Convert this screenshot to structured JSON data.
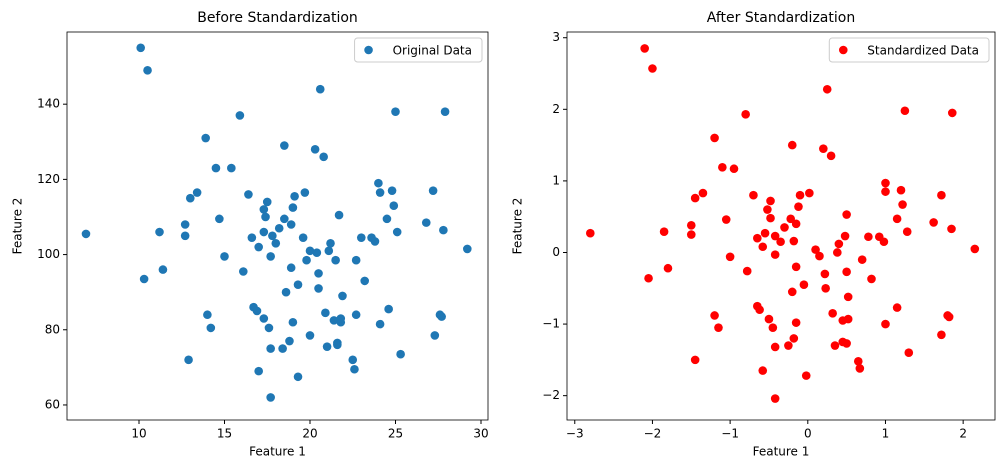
{
  "chart_data": [
    {
      "type": "scatter",
      "title": "Before Standardization",
      "x_label": "Feature 1",
      "y_label": "Feature 2",
      "legend": "upper right",
      "xlim": [
        5.79,
        30.41
      ],
      "ylim": [
        56.0,
        159.2
      ],
      "xticks": [
        10,
        15,
        20,
        25,
        30
      ],
      "yticks": [
        60,
        80,
        100,
        120,
        140
      ],
      "series": [
        {
          "name": "Original Data",
          "color": "#1f77b4",
          "x": [
            10.1,
            10.5,
            6.9,
            10.3,
            11.2,
            11.4,
            12.7,
            12.7,
            12.9,
            13,
            13.4,
            13.9,
            14.0,
            14.2,
            14.5,
            14.7,
            15,
            15.4,
            15.9,
            16.1,
            16.4,
            16.6,
            16.7,
            16.9,
            17.0,
            17.0,
            17.3,
            17.3,
            17.3,
            17.4,
            17.5,
            17.6,
            17.7,
            17.7,
            17.8,
            17.7,
            18.0,
            18.2,
            18.4,
            18.5,
            18.5,
            18.6,
            18.8,
            18.9,
            18.9,
            19,
            19,
            19.1,
            19.3,
            19.3,
            19.6,
            19.7,
            19.8,
            20.0,
            20.0,
            20.3,
            20.4,
            20.5,
            20.5,
            20.6,
            20.8,
            20.9,
            21,
            21.1,
            21.2,
            21.4,
            21.5,
            21.6,
            21.6,
            21.7,
            21.8,
            21.8,
            21.9,
            22.5,
            22.6,
            22.7,
            22.7,
            23.0,
            23.2,
            23.6,
            23.8,
            24.0,
            24.1,
            24.1,
            24.5,
            24.6,
            24.8,
            24.9,
            25.0,
            25.1,
            25.3,
            26.8,
            27.2,
            27.3,
            27.6,
            27.7,
            27.8,
            27.9,
            29.2
          ],
          "values": [
            155,
            149,
            105.5,
            93.5,
            106,
            96,
            105,
            108,
            72,
            115,
            116.5,
            131,
            84,
            80.5,
            123,
            109.5,
            99.5,
            123,
            137,
            95.5,
            116,
            104.5,
            86,
            85,
            102,
            69,
            106,
            112,
            83,
            110,
            114,
            80.5,
            75,
            99.5,
            105,
            62,
            103,
            107,
            75,
            109.5,
            129,
            90,
            77,
            96.5,
            108,
            112.5,
            82,
            115.5,
            92,
            67.5,
            104.5,
            116.5,
            98.5,
            101,
            78.5,
            128,
            100.5,
            95,
            91,
            144,
            126,
            84.5,
            75.5,
            101,
            103,
            82.5,
            98.5,
            76.5,
            76,
            110.5,
            82,
            83,
            89,
            72,
            69.5,
            98.5,
            84,
            104.5,
            93,
            104.5,
            103.5,
            119,
            116.5,
            81.5,
            109.5,
            85.5,
            117,
            113,
            138,
            106,
            73.5,
            108.5,
            117,
            78.5,
            84,
            83.5,
            106.5,
            138,
            101.5
          ]
        }
      ]
    },
    {
      "type": "scatter",
      "title": "After Standardization",
      "x_label": "Feature 1",
      "y_label": "Feature 2",
      "legend": "upper right",
      "xlim": [
        -3.1,
        2.41
      ],
      "ylim": [
        -2.34,
        3.08
      ],
      "xticks": [
        {
          "value": -3,
          "label": "−3"
        },
        {
          "value": -2,
          "label": "−2"
        },
        {
          "value": -1,
          "label": "−1"
        },
        0,
        1,
        2
      ],
      "yticks": [
        {
          "value": -2,
          "label": "−2"
        },
        {
          "value": -1,
          "label": "−1"
        },
        0,
        1,
        2,
        3
      ],
      "series": [
        {
          "name": "Standardized Data",
          "color": "#ff0000",
          "x": [
            -2.1,
            -2.0,
            -2.8,
            -2.05,
            -1.85,
            -1.8,
            -1.5,
            -1.5,
            -1.45,
            -1.45,
            -1.35,
            -1.2,
            -1.2,
            -1.15,
            -1.1,
            -1.05,
            -1.0,
            -0.95,
            -0.8,
            -0.78,
            -0.7,
            -0.65,
            -0.65,
            -0.62,
            -0.58,
            -0.58,
            -0.55,
            -0.52,
            -0.5,
            -0.48,
            -0.48,
            -0.45,
            -0.42,
            -0.42,
            -0.42,
            -0.42,
            -0.35,
            -0.3,
            -0.25,
            -0.22,
            -0.2,
            -0.2,
            -0.18,
            -0.18,
            -0.15,
            -0.15,
            -0.15,
            -0.12,
            -0.1,
            -0.05,
            -0.02,
            0.02,
            0.1,
            0.15,
            0.2,
            0.22,
            0.23,
            0.25,
            0.3,
            0.32,
            0.35,
            0.38,
            0.4,
            0.45,
            0.45,
            0.48,
            0.5,
            0.5,
            0.5,
            0.52,
            0.52,
            0.65,
            0.67,
            0.7,
            0.78,
            0.82,
            0.92,
            0.98,
            1.0,
            1.0,
            1.0,
            1.15,
            1.15,
            1.2,
            1.22,
            1.25,
            1.28,
            1.3,
            1.62,
            1.72,
            1.72,
            1.8,
            1.82,
            1.85,
            1.86,
            2.15
          ],
          "values": [
            2.85,
            2.57,
            0.27,
            -0.36,
            0.29,
            -0.22,
            0.25,
            0.38,
            -1.5,
            0.76,
            0.83,
            1.6,
            -0.88,
            -1.05,
            1.19,
            0.46,
            -0.06,
            1.17,
            1.93,
            -0.26,
            0.8,
            0.2,
            -0.75,
            -0.8,
            0.08,
            -1.65,
            0.27,
            0.6,
            -0.93,
            0.48,
            0.72,
            -1.05,
            -1.32,
            -0.03,
            0.23,
            -2.04,
            0.15,
            0.35,
            -1.3,
            0.47,
            1.5,
            -0.55,
            -1.2,
            0.16,
            0.4,
            -0.2,
            -0.98,
            0.64,
            0.8,
            -0.45,
            -1.72,
            0.83,
            0.04,
            -0.05,
            1.45,
            -0.3,
            -0.5,
            2.28,
            1.35,
            -0.85,
            -1.3,
            0.0,
            0.12,
            -0.95,
            -1.25,
            0.23,
            0.53,
            -0.27,
            -1.27,
            -0.62,
            -0.93,
            -1.52,
            -1.62,
            -0.1,
            0.22,
            -0.37,
            0.22,
            0.15,
            0.97,
            0.85,
            -1.0,
            0.47,
            -0.77,
            0.87,
            0.67,
            1.98,
            0.29,
            -1.4,
            0.42,
            0.8,
            -1.15,
            -0.88,
            -0.9,
            0.33,
            1.95,
            0.05
          ]
        }
      ]
    }
  ]
}
